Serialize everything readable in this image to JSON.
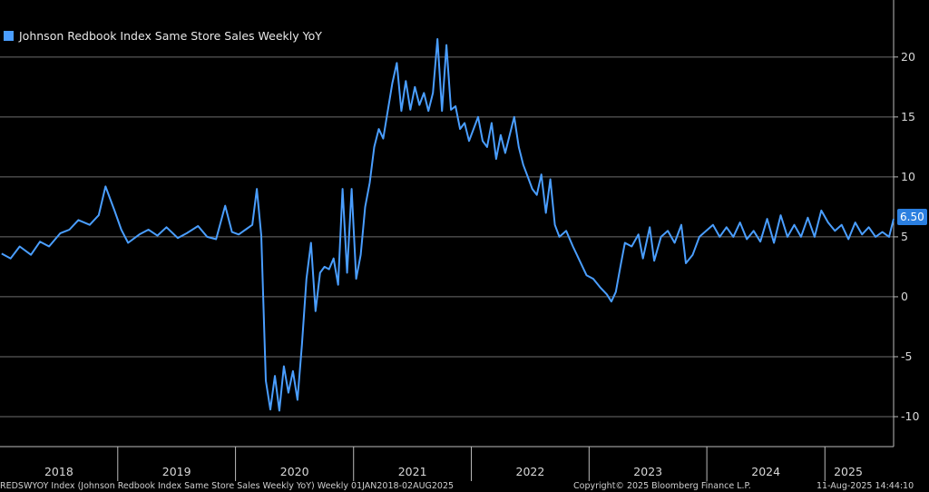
{
  "legend": {
    "label": "Johnson Redbook Index Same Store Sales Weekly YoY",
    "color": "#4a9eff"
  },
  "last_value_badge": "6.50",
  "footer": {
    "left": "REDSWYOY Index (Johnson Redbook Index Same Store Sales Weekly YoY)  Weekly 01JAN2018-02AUG2025",
    "middle": "Copyright© 2025 Bloomberg Finance L.P.",
    "right": "11-Aug-2025 14:44:10"
  },
  "chart_data": {
    "type": "line",
    "title": "",
    "xlabel": "",
    "ylabel": "",
    "xlim": [
      "2018-01-01",
      "2025-08-02"
    ],
    "ylim": [
      -12.5,
      24
    ],
    "yticks": [
      -10,
      -5,
      0,
      5,
      10,
      15,
      20
    ],
    "x_tick_labels": [
      "2018",
      "2019",
      "2020",
      "2021",
      "2022",
      "2023",
      "2024",
      "2025"
    ],
    "grid": true,
    "legend_position": "top-left",
    "series": [
      {
        "name": "Johnson Redbook Index Same Store Sales Weekly YoY",
        "color": "#4a9eff",
        "points": [
          [
            "2018-01-06",
            3.6
          ],
          [
            "2018-02-03",
            3.2
          ],
          [
            "2018-03-03",
            4.2
          ],
          [
            "2018-04-07",
            3.5
          ],
          [
            "2018-05-05",
            4.6
          ],
          [
            "2018-06-02",
            4.2
          ],
          [
            "2018-07-07",
            5.3
          ],
          [
            "2018-08-04",
            5.6
          ],
          [
            "2018-09-01",
            6.4
          ],
          [
            "2018-10-06",
            6.0
          ],
          [
            "2018-11-03",
            6.8
          ],
          [
            "2018-11-24",
            9.2
          ],
          [
            "2018-12-22",
            7.2
          ],
          [
            "2019-01-12",
            5.6
          ],
          [
            "2019-02-02",
            4.5
          ],
          [
            "2019-03-09",
            5.2
          ],
          [
            "2019-04-06",
            5.6
          ],
          [
            "2019-05-04",
            5.1
          ],
          [
            "2019-06-01",
            5.8
          ],
          [
            "2019-07-06",
            4.9
          ],
          [
            "2019-08-03",
            5.3
          ],
          [
            "2019-09-07",
            5.9
          ],
          [
            "2019-10-05",
            5.0
          ],
          [
            "2019-11-02",
            4.8
          ],
          [
            "2019-11-30",
            7.6
          ],
          [
            "2019-12-21",
            5.4
          ],
          [
            "2020-01-11",
            5.2
          ],
          [
            "2020-02-01",
            5.6
          ],
          [
            "2020-02-22",
            6.0
          ],
          [
            "2020-03-07",
            9.0
          ],
          [
            "2020-03-21",
            5.1
          ],
          [
            "2020-04-04",
            -7.0
          ],
          [
            "2020-04-18",
            -9.4
          ],
          [
            "2020-05-02",
            -6.6
          ],
          [
            "2020-05-16",
            -9.5
          ],
          [
            "2020-05-30",
            -5.8
          ],
          [
            "2020-06-13",
            -8.0
          ],
          [
            "2020-06-27",
            -6.2
          ],
          [
            "2020-07-11",
            -8.6
          ],
          [
            "2020-07-25",
            -4.0
          ],
          [
            "2020-08-08",
            1.5
          ],
          [
            "2020-08-22",
            4.5
          ],
          [
            "2020-09-05",
            -1.2
          ],
          [
            "2020-09-19",
            2.0
          ],
          [
            "2020-10-03",
            2.5
          ],
          [
            "2020-10-17",
            2.3
          ],
          [
            "2020-10-31",
            3.2
          ],
          [
            "2020-11-14",
            1.0
          ],
          [
            "2020-11-28",
            9.0
          ],
          [
            "2020-12-12",
            2.0
          ],
          [
            "2020-12-26",
            9.0
          ],
          [
            "2021-01-09",
            1.5
          ],
          [
            "2021-01-23",
            3.5
          ],
          [
            "2021-02-06",
            7.5
          ],
          [
            "2021-02-20",
            9.5
          ],
          [
            "2021-03-06",
            12.5
          ],
          [
            "2021-03-20",
            14.0
          ],
          [
            "2021-04-03",
            13.2
          ],
          [
            "2021-04-17",
            15.5
          ],
          [
            "2021-05-01",
            17.8
          ],
          [
            "2021-05-15",
            19.5
          ],
          [
            "2021-05-29",
            15.5
          ],
          [
            "2021-06-12",
            18.0
          ],
          [
            "2021-06-26",
            15.6
          ],
          [
            "2021-07-10",
            17.5
          ],
          [
            "2021-07-24",
            16.0
          ],
          [
            "2021-08-07",
            17.0
          ],
          [
            "2021-08-21",
            15.5
          ],
          [
            "2021-09-04",
            17.0
          ],
          [
            "2021-09-18",
            21.5
          ],
          [
            "2021-10-02",
            15.5
          ],
          [
            "2021-10-16",
            21.0
          ],
          [
            "2021-10-30",
            15.6
          ],
          [
            "2021-11-13",
            15.9
          ],
          [
            "2021-11-27",
            14.0
          ],
          [
            "2021-12-11",
            14.5
          ],
          [
            "2021-12-25",
            13.0
          ],
          [
            "2022-01-08",
            14.0
          ],
          [
            "2022-01-22",
            15.0
          ],
          [
            "2022-02-05",
            13.0
          ],
          [
            "2022-02-19",
            12.5
          ],
          [
            "2022-03-05",
            14.5
          ],
          [
            "2022-03-19",
            11.5
          ],
          [
            "2022-04-02",
            13.5
          ],
          [
            "2022-04-16",
            12.0
          ],
          [
            "2022-04-30",
            13.5
          ],
          [
            "2022-05-14",
            15.0
          ],
          [
            "2022-05-28",
            12.5
          ],
          [
            "2022-06-11",
            11.0
          ],
          [
            "2022-06-25",
            10.0
          ],
          [
            "2022-07-09",
            9.0
          ],
          [
            "2022-07-23",
            8.5
          ],
          [
            "2022-08-06",
            10.2
          ],
          [
            "2022-08-20",
            7.0
          ],
          [
            "2022-09-03",
            9.8
          ],
          [
            "2022-09-17",
            6.0
          ],
          [
            "2022-10-01",
            5.0
          ],
          [
            "2022-10-22",
            5.5
          ],
          [
            "2022-11-12",
            4.2
          ],
          [
            "2022-12-03",
            3.0
          ],
          [
            "2022-12-24",
            1.8
          ],
          [
            "2023-01-14",
            1.5
          ],
          [
            "2023-02-04",
            0.8
          ],
          [
            "2023-02-25",
            0.2
          ],
          [
            "2023-03-11",
            -0.4
          ],
          [
            "2023-03-25",
            0.4
          ],
          [
            "2023-04-08",
            2.5
          ],
          [
            "2023-04-22",
            4.5
          ],
          [
            "2023-05-13",
            4.2
          ],
          [
            "2023-06-03",
            5.2
          ],
          [
            "2023-06-17",
            3.2
          ],
          [
            "2023-07-08",
            5.8
          ],
          [
            "2023-07-22",
            3.0
          ],
          [
            "2023-08-12",
            5.0
          ],
          [
            "2023-09-02",
            5.5
          ],
          [
            "2023-09-23",
            4.5
          ],
          [
            "2023-10-14",
            6.0
          ],
          [
            "2023-10-28",
            2.8
          ],
          [
            "2023-11-18",
            3.5
          ],
          [
            "2023-12-09",
            5.0
          ],
          [
            "2023-12-30",
            5.5
          ],
          [
            "2024-01-20",
            6.0
          ],
          [
            "2024-02-10",
            5.0
          ],
          [
            "2024-03-02",
            5.8
          ],
          [
            "2024-03-23",
            5.0
          ],
          [
            "2024-04-13",
            6.2
          ],
          [
            "2024-05-04",
            4.8
          ],
          [
            "2024-05-25",
            5.5
          ],
          [
            "2024-06-15",
            4.6
          ],
          [
            "2024-07-06",
            6.5
          ],
          [
            "2024-07-27",
            4.5
          ],
          [
            "2024-08-17",
            6.8
          ],
          [
            "2024-09-07",
            5.0
          ],
          [
            "2024-09-28",
            6.0
          ],
          [
            "2024-10-19",
            5.0
          ],
          [
            "2024-11-09",
            6.6
          ],
          [
            "2024-11-30",
            5.0
          ],
          [
            "2024-12-21",
            7.2
          ],
          [
            "2025-01-11",
            6.2
          ],
          [
            "2025-02-01",
            5.5
          ],
          [
            "2025-02-22",
            6.0
          ],
          [
            "2025-03-15",
            4.8
          ],
          [
            "2025-04-05",
            6.2
          ],
          [
            "2025-04-26",
            5.2
          ],
          [
            "2025-05-17",
            5.8
          ],
          [
            "2025-06-07",
            5.0
          ],
          [
            "2025-06-28",
            5.4
          ],
          [
            "2025-07-19",
            5.0
          ],
          [
            "2025-08-02",
            6.5
          ]
        ]
      }
    ]
  }
}
